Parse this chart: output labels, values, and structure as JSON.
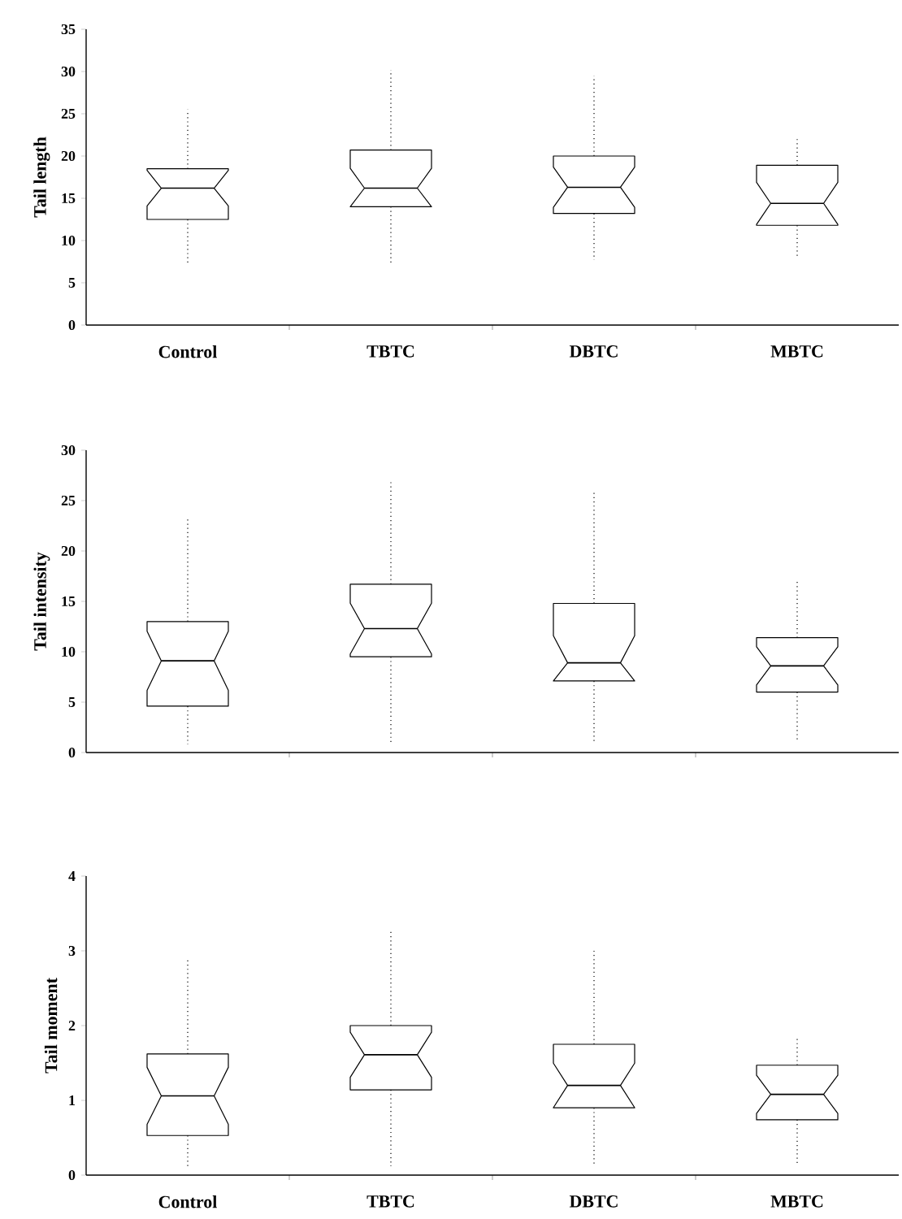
{
  "chart_data": [
    {
      "type": "box",
      "ylabel": "Tail length",
      "categories": [
        "Control",
        "TBTC",
        "DBTC",
        "MBTC"
      ],
      "ylim": [
        0,
        35
      ],
      "yticks": [
        0,
        5,
        10,
        15,
        20,
        25,
        30,
        35
      ],
      "boxes": [
        {
          "low": 7.2,
          "q1": 12.5,
          "median": 16.2,
          "q3": 18.5,
          "high": 25.5
        },
        {
          "low": 7.2,
          "q1": 14,
          "median": 16.2,
          "q3": 20.7,
          "high": 30.2
        },
        {
          "low": 7.7,
          "q1": 13.2,
          "median": 16.3,
          "q3": 20,
          "high": 29.5
        },
        {
          "low": 7.8,
          "q1": 11.8,
          "median": 14.4,
          "q3": 18.9,
          "high": 22.3
        }
      ]
    },
    {
      "type": "box",
      "ylabel": "Tail intensity",
      "categories": [
        null,
        null,
        null,
        null
      ],
      "ylim": [
        0,
        30
      ],
      "yticks": [
        0,
        5,
        10,
        15,
        20,
        25,
        30
      ],
      "boxes": [
        {
          "low": 0.8,
          "q1": 4.6,
          "median": 9.1,
          "q3": 13,
          "high": 23.3
        },
        {
          "low": 0.9,
          "q1": 9.5,
          "median": 12.3,
          "q3": 16.7,
          "high": 27
        },
        {
          "low": 0.9,
          "q1": 7.1,
          "median": 8.9,
          "q3": 14.8,
          "high": 25.8
        },
        {
          "low": 1.2,
          "q1": 6,
          "median": 8.6,
          "q3": 11.4,
          "high": 17.2
        }
      ]
    },
    {
      "type": "box",
      "ylabel": "Tail moment",
      "categories": [
        "Control",
        "TBTC",
        "DBTC",
        "MBTC"
      ],
      "ylim": [
        0,
        4
      ],
      "yticks": [
        0,
        1,
        2,
        3,
        4
      ],
      "boxes": [
        {
          "low": 0.1,
          "q1": 0.53,
          "median": 1.06,
          "q3": 1.62,
          "high": 2.88
        },
        {
          "low": 0.12,
          "q1": 1.14,
          "median": 1.61,
          "q3": 2.0,
          "high": 3.27
        },
        {
          "low": 0.12,
          "q1": 0.9,
          "median": 1.2,
          "q3": 1.75,
          "high": 3.0
        },
        {
          "low": 0.15,
          "q1": 0.74,
          "median": 1.08,
          "q3": 1.47,
          "high": 1.86
        }
      ]
    }
  ]
}
